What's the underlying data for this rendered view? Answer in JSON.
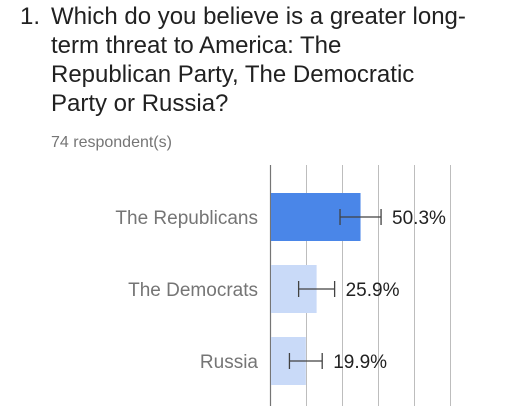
{
  "question": {
    "number": "1.",
    "text": "Which do you believe is a greater long-\nterm threat to America: The\nRepublican Party, The Democratic\nParty or Russia?"
  },
  "respondents": "74 respondent(s)",
  "colors": {
    "primary_bar": "#4a86e8",
    "secondary_bar": "#c9daf8",
    "gridline": "#bdbdbd",
    "axis": "#757575",
    "label": "#757575",
    "value_label": "#212121",
    "error_bar": "#424242"
  },
  "chart_data": {
    "type": "bar",
    "orientation": "horizontal",
    "categories": [
      "The Republicans",
      "The Democrats",
      "Russia"
    ],
    "values": [
      50.3,
      25.9,
      19.9
    ],
    "value_labels": [
      "50.3%",
      "25.9%",
      "19.9%"
    ],
    "error_margin": [
      11.4,
      10.0,
      9.1
    ],
    "xlim": [
      0,
      100
    ],
    "grid": true,
    "title": "",
    "xlabel": "",
    "ylabel": ""
  }
}
